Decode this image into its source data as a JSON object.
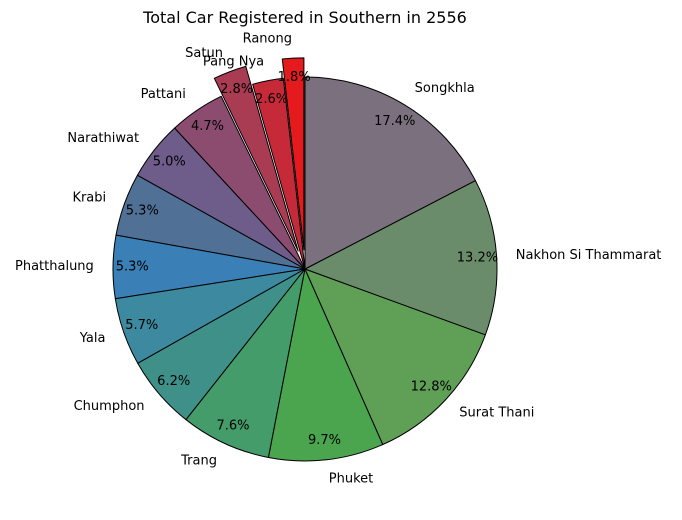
{
  "chart_data": {
    "type": "pie",
    "title": "Total Car Registered in Southern in 2556",
    "start_angle_deg": 90,
    "direction": "counterclockwise",
    "exploded": [
      "Satun",
      "Ranong"
    ],
    "categories": [
      "Ranong",
      "Pang Nya",
      "Satun",
      "Pattani",
      "Narathiwat",
      "Krabi",
      "Phatthalung",
      "Yala",
      "Chumphon",
      "Trang",
      "Phuket",
      "Surat Thani",
      "Nakhon Si Thammarat",
      "Songkhla"
    ],
    "values": [
      1.8,
      2.6,
      2.8,
      4.7,
      5.0,
      5.3,
      5.3,
      5.7,
      6.2,
      7.6,
      9.7,
      12.8,
      13.2,
      17.4
    ],
    "percent_labels": [
      "1.8%",
      "2.6%",
      "2.8%",
      "4.7%",
      "5.0%",
      "5.3%",
      "5.3%",
      "5.7%",
      "6.2%",
      "7.6%",
      "9.7%",
      "12.8%",
      "13.2%",
      "17.4%"
    ],
    "colors": [
      "#e41a1c",
      "#c62a38",
      "#a93b53",
      "#8b4c6f",
      "#6e5c8a",
      "#507095",
      "#3a7fb6",
      "#3d8aa0",
      "#3f9088",
      "#449c6a",
      "#4aa54e",
      "#60a056",
      "#6a8c6a",
      "#7b717e"
    ]
  }
}
